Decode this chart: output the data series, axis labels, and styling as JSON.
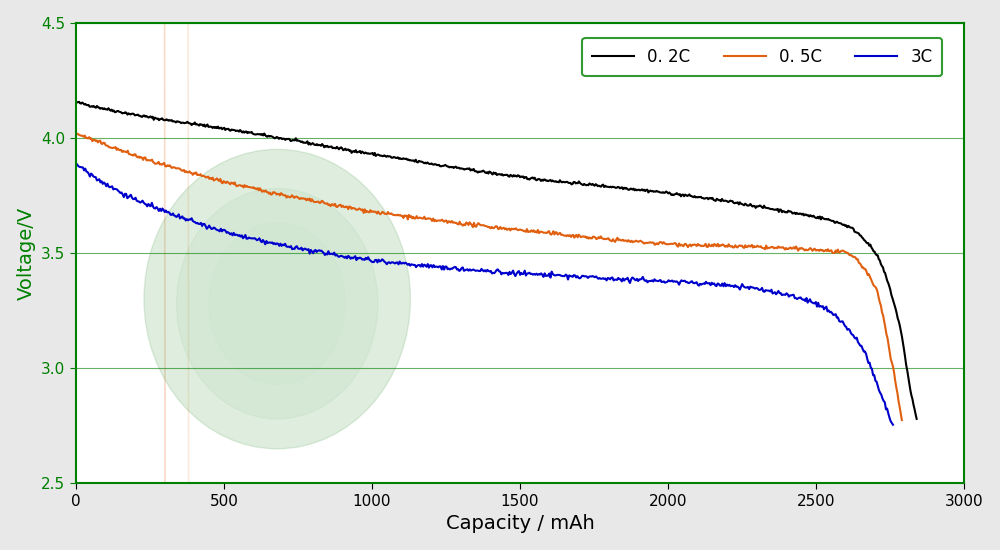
{
  "title": "",
  "xlabel": "Capacity / mAh",
  "ylabel": "Voltage/V",
  "xlim": [
    0,
    3000
  ],
  "ylim": [
    2.5,
    4.5
  ],
  "yticks": [
    2.5,
    3.0,
    3.5,
    4.0,
    4.5
  ],
  "xticks": [
    0,
    500,
    1000,
    1500,
    2000,
    2500,
    3000
  ],
  "line_colors": [
    "#000000",
    "#E06010",
    "#0000CC"
  ],
  "line_labels": [
    "0. 2C",
    "0. 5C",
    "3C"
  ],
  "axis_color": "#008000",
  "tick_color": "#008000",
  "label_color_y": "#008000",
  "label_color_x": "#000000",
  "background_color": "#e8e8e8",
  "plot_background": "#ffffff",
  "legend_edge_color": "#008000",
  "grid_color": "#008000"
}
